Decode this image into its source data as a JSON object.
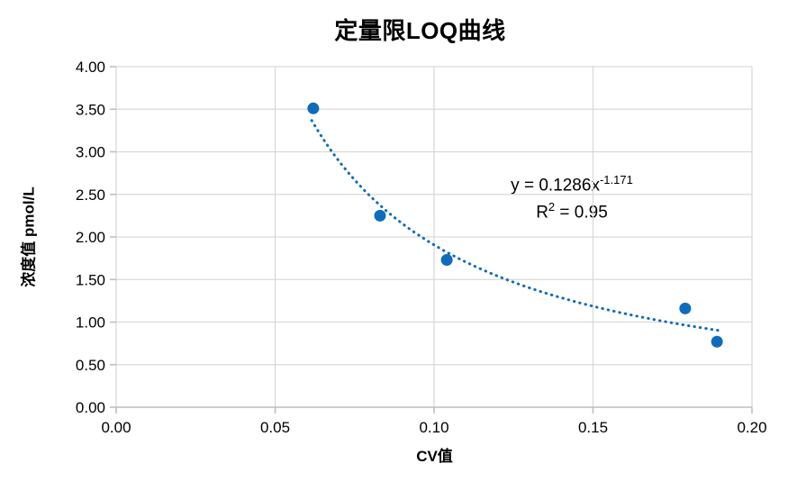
{
  "chart_data": {
    "type": "scatter",
    "title": "定量限LOQ曲线",
    "xlabel": "CV值",
    "ylabel": "浓度值 pmol/L",
    "xlim": [
      0,
      0.2
    ],
    "ylim": [
      0,
      4.0
    ],
    "x_ticks": [
      "0.00",
      "0.05",
      "0.10",
      "0.15",
      "0.20"
    ],
    "y_ticks": [
      "0.00",
      "0.50",
      "1.00",
      "1.50",
      "2.00",
      "2.50",
      "3.00",
      "3.50",
      "4.00"
    ],
    "grid": true,
    "legend": "none",
    "points": [
      {
        "x": 0.062,
        "y": 3.51
      },
      {
        "x": 0.083,
        "y": 2.25
      },
      {
        "x": 0.104,
        "y": 1.73
      },
      {
        "x": 0.179,
        "y": 1.16
      },
      {
        "x": 0.189,
        "y": 0.77
      }
    ],
    "trendline": {
      "type": "power",
      "a": 0.1286,
      "b": -1.171,
      "x_start": 0.0615,
      "x_end": 0.19,
      "style": "dotted"
    },
    "equation": {
      "base": "y = 0.1286x",
      "exponent": "-1.171"
    },
    "r_squared": {
      "base": "R",
      "sup": "2",
      "rest": " = 0.95"
    },
    "colors": {
      "point": "#0f6cbd",
      "trendline": "#0f6cbd",
      "gridline": "#d9d9d9",
      "axis": "#bfbfbf",
      "text": "#000000"
    }
  }
}
